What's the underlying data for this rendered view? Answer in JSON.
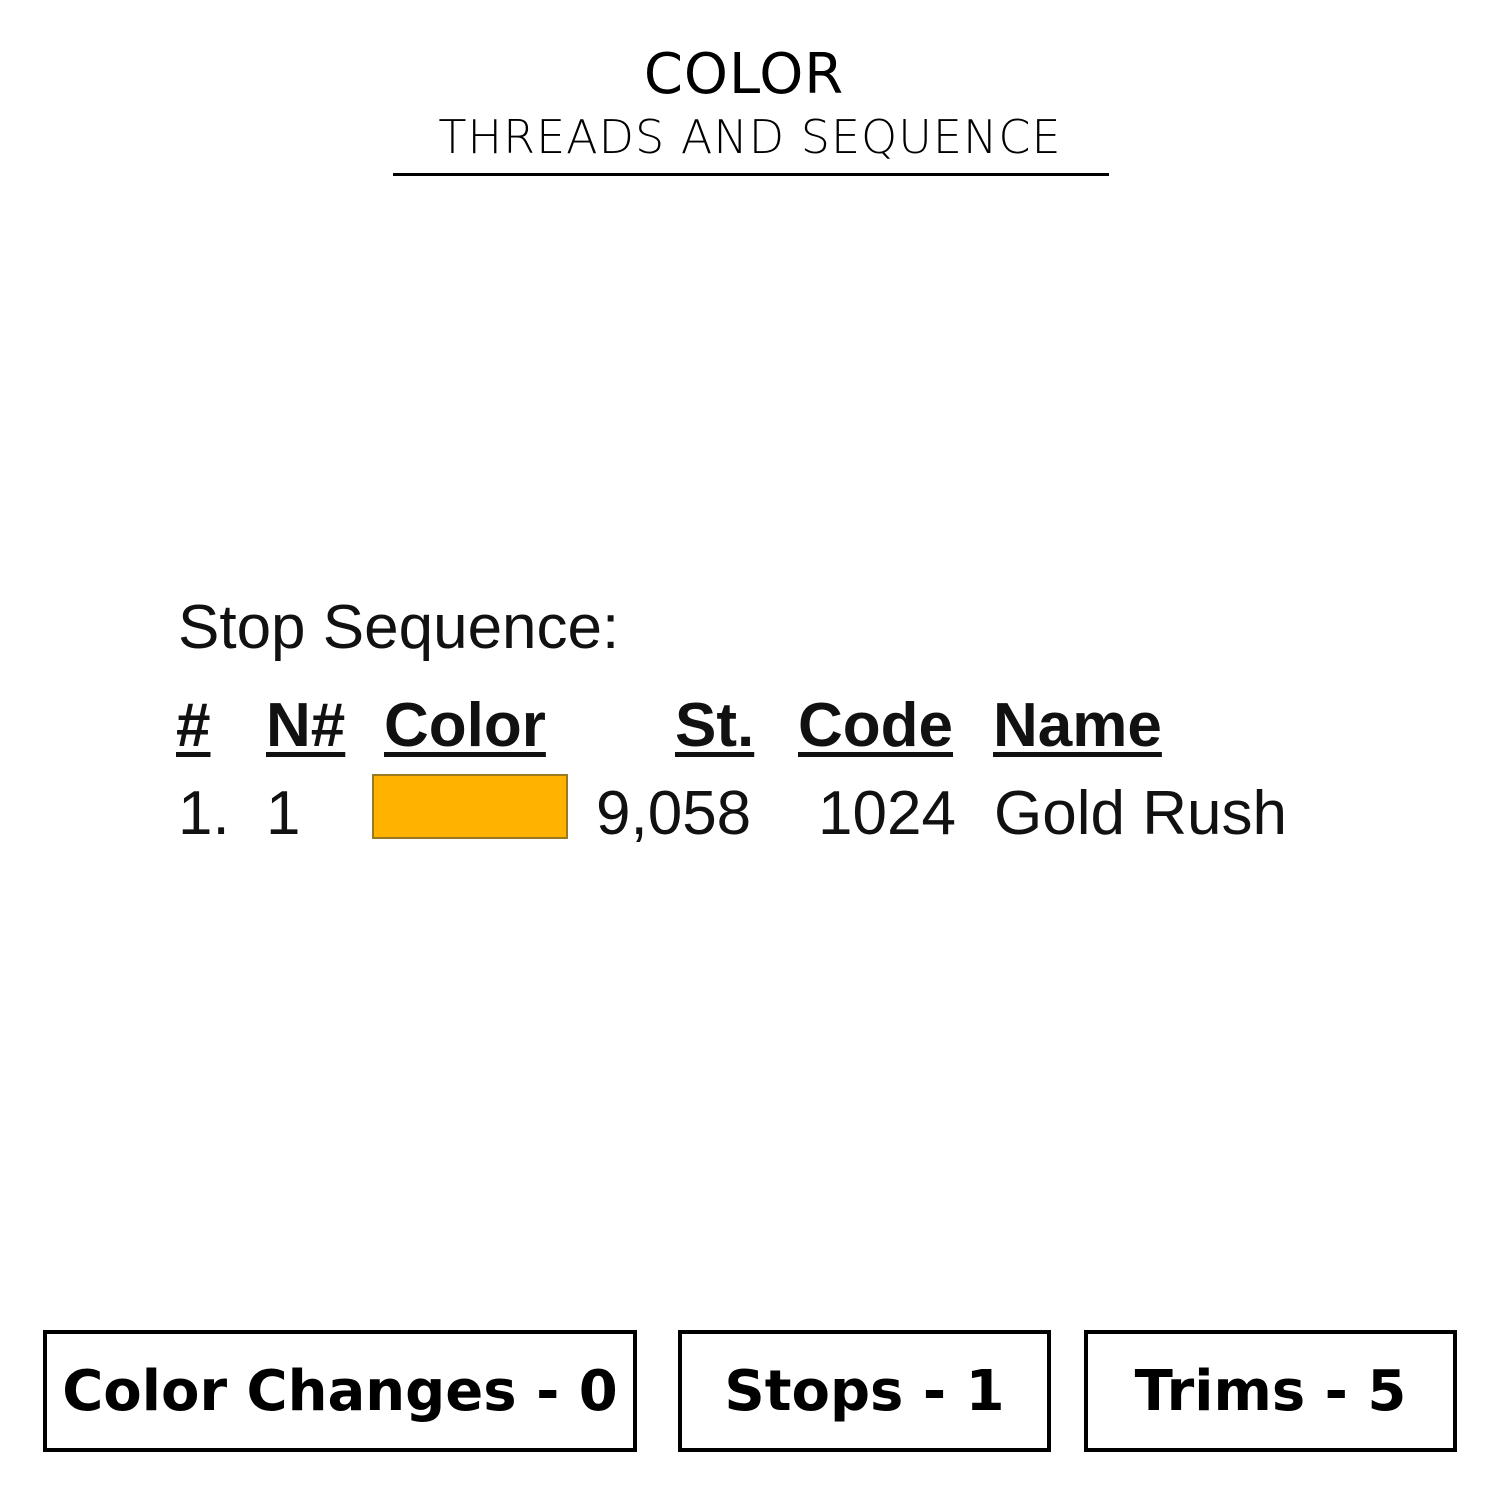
{
  "header": {
    "title": "COLOR",
    "subtitle": "THREADS AND SEQUENCE"
  },
  "sequence": {
    "label": "Stop Sequence:",
    "columns": [
      "#",
      "N#",
      "Color",
      "St.",
      "Code",
      "Name"
    ],
    "rows": [
      {
        "index": "1.",
        "needle": "1",
        "color": "#FFB300",
        "stitches": "9,058",
        "code": "1024",
        "name": "Gold Rush"
      }
    ]
  },
  "stats": {
    "color_changes": "Color Changes - 0",
    "stops": "Stops - 1",
    "trims": "Trims - 5"
  }
}
